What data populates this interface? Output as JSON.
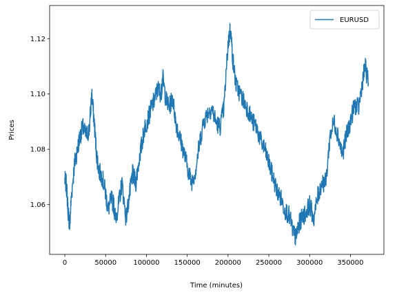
{
  "chart_data": {
    "type": "line",
    "xlabel": "Time (minutes)",
    "ylabel": "Prices",
    "xlim": [
      -18600,
      391000
    ],
    "ylim": [
      1.042,
      1.132
    ],
    "xticks": [
      0,
      50000,
      100000,
      150000,
      200000,
      250000,
      300000,
      350000
    ],
    "yticks": [
      1.06,
      1.08,
      1.1,
      1.12
    ],
    "ytick_labels": [
      "1.06",
      "1.08",
      "1.10",
      "1.12"
    ],
    "grid": false,
    "legend_position": "top-right",
    "series": [
      {
        "name": "EURUSD",
        "color": "#1f77b4",
        "x": [
          0,
          2000,
          4000,
          6000,
          8000,
          12000,
          15000,
          18000,
          22000,
          26000,
          30000,
          33000,
          36000,
          39000,
          42000,
          46000,
          50000,
          53000,
          57000,
          60000,
          62000,
          66000,
          70000,
          75000,
          80000,
          83000,
          87000,
          92000,
          95000,
          98000,
          102000,
          106000,
          110000,
          114000,
          118000,
          120000,
          124000,
          128000,
          132000,
          136000,
          140000,
          145000,
          150000,
          155000,
          160000,
          165000,
          170000,
          175000,
          180000,
          185000,
          190000,
          195000,
          200000,
          203000,
          206000,
          210000,
          215000,
          220000,
          225000,
          230000,
          235000,
          240000,
          245000,
          250000,
          255000,
          260000,
          265000,
          270000,
          275000,
          280000,
          283000,
          286000,
          290000,
          295000,
          300000,
          305000,
          310000,
          315000,
          320000,
          325000,
          330000,
          335000,
          340000,
          345000,
          350000,
          355000,
          360000,
          365000,
          368000,
          372000
        ],
        "values": [
          1.069,
          1.067,
          1.058,
          1.052,
          1.063,
          1.075,
          1.079,
          1.084,
          1.088,
          1.085,
          1.087,
          1.1,
          1.09,
          1.078,
          1.072,
          1.07,
          1.064,
          1.058,
          1.062,
          1.06,
          1.055,
          1.06,
          1.068,
          1.055,
          1.065,
          1.071,
          1.068,
          1.078,
          1.083,
          1.088,
          1.091,
          1.095,
          1.098,
          1.102,
          1.1,
          1.106,
          1.098,
          1.095,
          1.099,
          1.09,
          1.085,
          1.08,
          1.074,
          1.068,
          1.072,
          1.082,
          1.09,
          1.093,
          1.095,
          1.09,
          1.088,
          1.095,
          1.118,
          1.124,
          1.112,
          1.103,
          1.1,
          1.097,
          1.094,
          1.09,
          1.088,
          1.083,
          1.08,
          1.075,
          1.07,
          1.065,
          1.062,
          1.058,
          1.056,
          1.05,
          1.048,
          1.052,
          1.055,
          1.057,
          1.06,
          1.055,
          1.063,
          1.068,
          1.068,
          1.085,
          1.09,
          1.085,
          1.078,
          1.085,
          1.09,
          1.096,
          1.095,
          1.105,
          1.11,
          1.104
        ]
      }
    ]
  }
}
